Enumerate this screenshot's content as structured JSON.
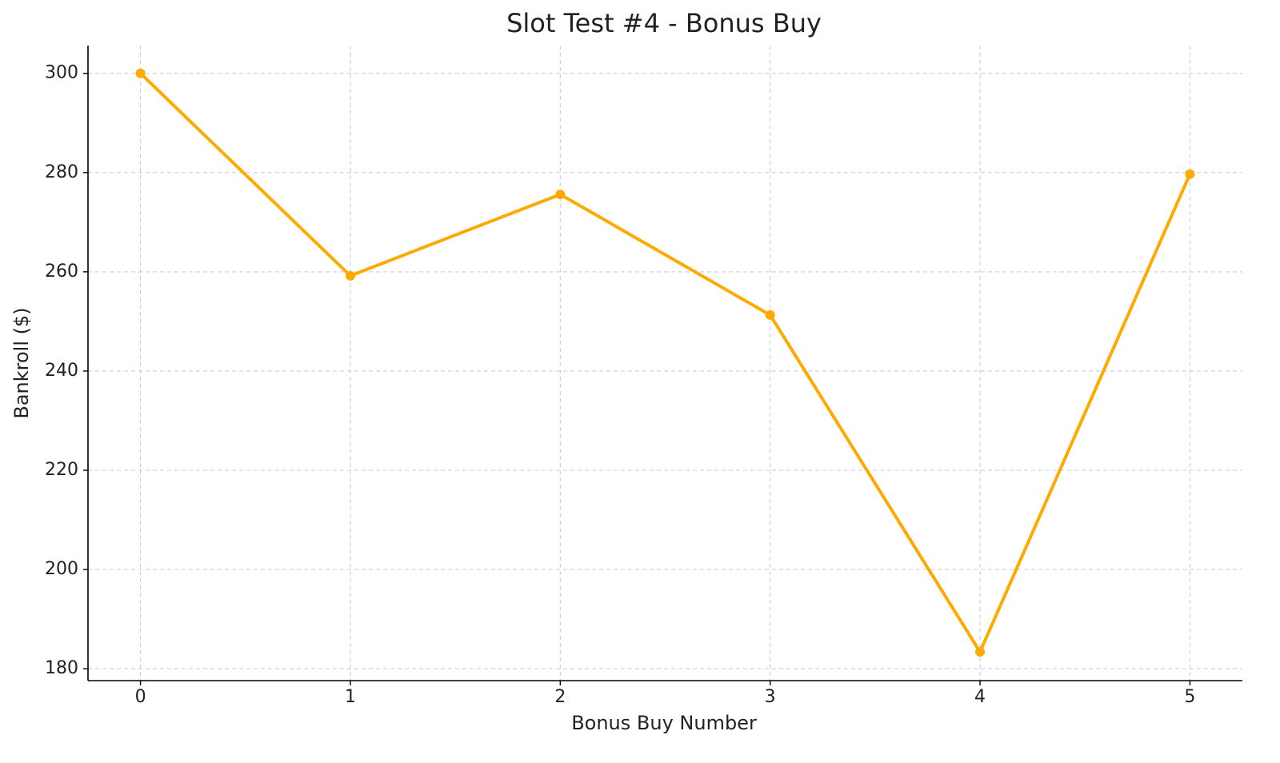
{
  "chart_data": {
    "type": "line",
    "title": "Slot Test #4 - Bonus Buy",
    "x_label": "Bonus Buy Number",
    "y_label": "Bankroll ($)",
    "x": [
      0,
      1,
      2,
      3,
      4,
      5
    ],
    "series": [
      {
        "name": "Bankroll",
        "color": "#ffaa00",
        "values": [
          300,
          259.2,
          275.6,
          251.3,
          183.4,
          279.7
        ]
      }
    ],
    "xlim": [
      -0.25,
      5.25
    ],
    "xticks": [
      0,
      1,
      2,
      3,
      4,
      5
    ],
    "ylim": [
      177.6,
      305.6
    ],
    "yticks": [
      180,
      200,
      220,
      240,
      260,
      280,
      300
    ],
    "grid": true,
    "markers": true
  }
}
